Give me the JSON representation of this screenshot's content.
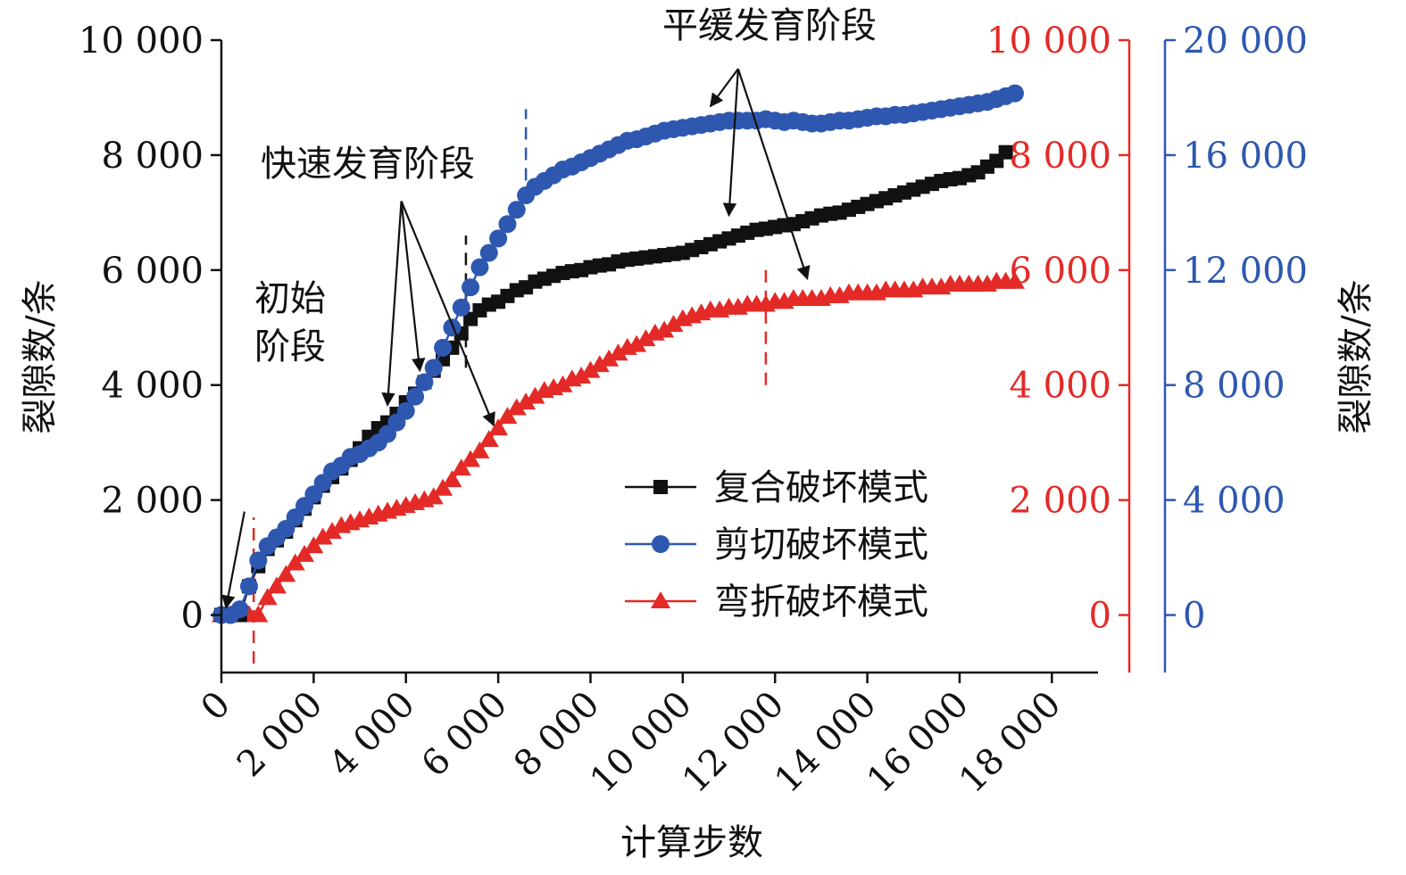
{
  "chart_data": {
    "type": "line",
    "xlabel": "计算步数",
    "ylabel_left": "裂隙数/条",
    "ylabel_right": "裂隙数/条",
    "xlim": [
      0,
      19000
    ],
    "ylim_left": [
      -1000,
      10000
    ],
    "ylim_right_red": [
      -1000,
      10000
    ],
    "ylim_right_blue": [
      -2000,
      20000
    ],
    "x_ticks": [
      0,
      2000,
      4000,
      6000,
      8000,
      10000,
      12000,
      14000,
      16000,
      18000
    ],
    "x_tick_labels": [
      "0",
      "2 000",
      "4 000",
      "6 000",
      "8 000",
      "10 000",
      "12 000",
      "14 000",
      "16 000",
      "18 000"
    ],
    "y_left_ticks": [
      0,
      2000,
      4000,
      6000,
      8000,
      10000
    ],
    "y_left_tick_labels": [
      "0",
      "2 000",
      "4 000",
      "6 000",
      "8 000",
      "10 000"
    ],
    "y_right_red_ticks": [
      0,
      2000,
      4000,
      6000,
      8000,
      10000
    ],
    "y_right_red_tick_labels": [
      "0",
      "2 000",
      "4 000",
      "6 000",
      "8 000",
      "10 000"
    ],
    "y_right_blue_ticks": [
      0,
      4000,
      8000,
      12000,
      16000,
      20000
    ],
    "y_right_blue_tick_labels": [
      "0",
      "4 000",
      "8 000",
      "12 000",
      "16 000",
      "20 000"
    ],
    "grid": false,
    "legend_position": "lower-right",
    "series": [
      {
        "name": "复合破坏模式",
        "axis": "left",
        "color": "#111111",
        "marker": "square",
        "x": [
          0,
          200,
          400,
          600,
          800,
          1000,
          1200,
          1400,
          1600,
          1800,
          2000,
          2200,
          2400,
          2600,
          2800,
          3000,
          3200,
          3400,
          3600,
          3800,
          4000,
          4200,
          4400,
          4600,
          4800,
          5000,
          5200,
          5400,
          5600,
          5800,
          6000,
          6200,
          6400,
          6600,
          6800,
          7000,
          7200,
          7400,
          7600,
          7800,
          8000,
          8200,
          8400,
          8600,
          8800,
          9000,
          9200,
          9400,
          9600,
          9800,
          10000,
          10200,
          10400,
          10600,
          10800,
          11000,
          11200,
          11400,
          11600,
          11800,
          12000,
          12200,
          12400,
          12600,
          12800,
          13000,
          13200,
          13400,
          13600,
          13800,
          14000,
          14200,
          14400,
          14600,
          14800,
          15000,
          15200,
          15400,
          15600,
          15800,
          16000,
          16200,
          16400,
          16600,
          16800,
          17000
        ],
        "y": [
          0,
          0,
          0,
          500,
          850,
          1150,
          1300,
          1450,
          1650,
          1850,
          2050,
          2250,
          2400,
          2550,
          2700,
          2900,
          3100,
          3250,
          3350,
          3500,
          3700,
          3850,
          4050,
          4250,
          4450,
          4650,
          4900,
          5150,
          5300,
          5400,
          5450,
          5550,
          5650,
          5700,
          5800,
          5850,
          5900,
          5950,
          5980,
          6000,
          6050,
          6080,
          6100,
          6150,
          6180,
          6200,
          6220,
          6240,
          6260,
          6280,
          6300,
          6350,
          6400,
          6450,
          6500,
          6550,
          6600,
          6650,
          6700,
          6720,
          6750,
          6780,
          6800,
          6850,
          6900,
          6950,
          6980,
          7000,
          7050,
          7100,
          7150,
          7200,
          7250,
          7300,
          7350,
          7400,
          7450,
          7500,
          7550,
          7580,
          7600,
          7650,
          7700,
          7800,
          7900,
          8050
        ]
      },
      {
        "name": "剪切破坏模式",
        "axis": "right_blue",
        "color": "#2e58b0",
        "marker": "circle",
        "x": [
          0,
          200,
          400,
          600,
          800,
          1000,
          1200,
          1400,
          1600,
          1800,
          2000,
          2200,
          2400,
          2600,
          2800,
          3000,
          3200,
          3400,
          3600,
          3800,
          4000,
          4200,
          4400,
          4600,
          4800,
          5000,
          5200,
          5400,
          5600,
          5800,
          6000,
          6200,
          6400,
          6600,
          6800,
          7000,
          7200,
          7400,
          7600,
          7800,
          8000,
          8200,
          8400,
          8600,
          8800,
          9000,
          9200,
          9400,
          9600,
          9800,
          10000,
          10200,
          10400,
          10600,
          10800,
          11000,
          11200,
          11400,
          11600,
          11800,
          12000,
          12200,
          12400,
          12600,
          12800,
          13000,
          13200,
          13400,
          13600,
          13800,
          14000,
          14200,
          14400,
          14600,
          14800,
          15000,
          15200,
          15400,
          15600,
          15800,
          16000,
          16200,
          16400,
          16600,
          16800,
          17000,
          17200
        ],
        "y": [
          0,
          0,
          200,
          1000,
          1900,
          2400,
          2700,
          3000,
          3400,
          3800,
          4200,
          4600,
          5000,
          5200,
          5500,
          5600,
          5800,
          6000,
          6300,
          6700,
          7100,
          7600,
          8100,
          8600,
          9300,
          10000,
          10700,
          11400,
          12100,
          12600,
          13100,
          13600,
          14100,
          14600,
          14900,
          15100,
          15300,
          15500,
          15600,
          15750,
          15900,
          16050,
          16200,
          16350,
          16500,
          16550,
          16650,
          16750,
          16850,
          16900,
          16950,
          17000,
          17050,
          17100,
          17150,
          17200,
          17200,
          17200,
          17200,
          17250,
          17200,
          17150,
          17200,
          17150,
          17100,
          17100,
          17150,
          17200,
          17200,
          17250,
          17300,
          17350,
          17350,
          17400,
          17400,
          17450,
          17500,
          17550,
          17600,
          17650,
          17700,
          17750,
          17800,
          17850,
          17950,
          18050,
          18150
        ]
      },
      {
        "name": "弯折破坏模式",
        "axis": "right_red",
        "color": "#e42a27",
        "marker": "triangle",
        "x": [
          0,
          200,
          400,
          600,
          800,
          1000,
          1200,
          1400,
          1600,
          1800,
          2000,
          2200,
          2400,
          2600,
          2800,
          3000,
          3200,
          3400,
          3600,
          3800,
          4000,
          4200,
          4400,
          4600,
          4800,
          5000,
          5200,
          5400,
          5600,
          5800,
          6000,
          6200,
          6400,
          6600,
          6800,
          7000,
          7200,
          7400,
          7600,
          7800,
          8000,
          8200,
          8400,
          8600,
          8800,
          9000,
          9200,
          9400,
          9600,
          9800,
          10000,
          10200,
          10400,
          10600,
          10800,
          11000,
          11200,
          11400,
          11600,
          11800,
          12000,
          12200,
          12400,
          12600,
          12800,
          13000,
          13200,
          13400,
          13600,
          13800,
          14000,
          14200,
          14400,
          14600,
          14800,
          15000,
          15200,
          15400,
          15600,
          15800,
          16000,
          16200,
          16400,
          16600,
          16800,
          17000,
          17200
        ],
        "y": [
          0,
          0,
          0,
          0,
          0,
          300,
          500,
          700,
          900,
          1050,
          1200,
          1350,
          1450,
          1550,
          1600,
          1650,
          1700,
          1750,
          1800,
          1850,
          1900,
          1950,
          2000,
          2050,
          2200,
          2350,
          2550,
          2700,
          2850,
          3050,
          3250,
          3450,
          3600,
          3700,
          3800,
          3900,
          3950,
          4000,
          4100,
          4150,
          4250,
          4350,
          4450,
          4550,
          4650,
          4700,
          4800,
          4900,
          4950,
          5050,
          5150,
          5200,
          5250,
          5300,
          5300,
          5350,
          5350,
          5400,
          5400,
          5400,
          5450,
          5450,
          5500,
          5500,
          5500,
          5500,
          5550,
          5550,
          5600,
          5600,
          5600,
          5600,
          5650,
          5650,
          5650,
          5650,
          5700,
          5700,
          5700,
          5750,
          5750,
          5750,
          5750,
          5750,
          5800,
          5800,
          5800
        ]
      }
    ],
    "phase_markers": [
      {
        "x": 700,
        "color": "#e42a27"
      },
      {
        "x": 5300,
        "color": "#111111"
      },
      {
        "x": 6600,
        "color": "#2e58b0"
      },
      {
        "x": 11800,
        "color": "#e42a27"
      }
    ],
    "annotations": [
      {
        "name": "initial-stage",
        "lines": [
          "初始",
          "阶段"
        ]
      },
      {
        "name": "rapid-stage",
        "lines": [
          "快速发育阶段"
        ]
      },
      {
        "name": "gentle-stage",
        "lines": [
          "平缓发育阶段"
        ]
      }
    ]
  }
}
